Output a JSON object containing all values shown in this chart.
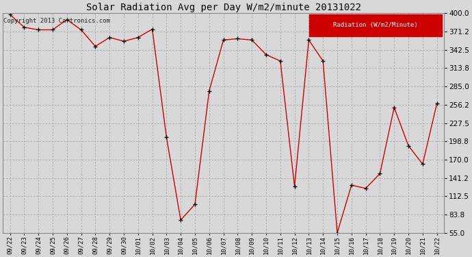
{
  "title": "Solar Radiation Avg per Day W/m2/minute 20131022",
  "copyright_text": "Copyright 2013 Cartronics.com",
  "legend_label": "Radiation (W/m2/Minute)",
  "legend_bg": "#cc0000",
  "legend_text_color": "#ffffff",
  "line_color": "#cc0000",
  "marker_color": "#000000",
  "bg_color": "#d8d8d8",
  "plot_bg_color": "#d8d8d8",
  "grid_color": "#aaaaaa",
  "ylim": [
    55.0,
    400.0
  ],
  "yticks": [
    55.0,
    83.8,
    112.5,
    141.2,
    170.0,
    198.8,
    227.5,
    256.2,
    285.0,
    313.8,
    342.5,
    371.2,
    400.0
  ],
  "categories": [
    "09/22",
    "09/23",
    "09/24",
    "09/25",
    "09/26",
    "09/27",
    "09/28",
    "09/29",
    "09/30",
    "10/01",
    "10/02",
    "10/03",
    "10/04",
    "10/05",
    "10/06",
    "10/07",
    "10/08",
    "10/09",
    "10/10",
    "10/11",
    "10/12",
    "10/13",
    "10/14",
    "10/15",
    "10/16",
    "10/17",
    "10/18",
    "10/19",
    "10/20",
    "10/21",
    "10/22"
  ],
  "values": [
    398,
    378,
    374,
    374,
    390,
    374,
    348,
    362,
    356,
    362,
    375,
    205,
    75,
    100,
    278,
    358,
    360,
    358,
    335,
    325,
    128,
    358,
    325,
    55,
    130,
    125,
    148,
    252,
    192,
    163,
    258
  ],
  "title_fontsize": 10,
  "copyright_fontsize": 6.5,
  "xtick_fontsize": 6.5,
  "ytick_fontsize": 7.5,
  "legend_fontsize": 6.5
}
